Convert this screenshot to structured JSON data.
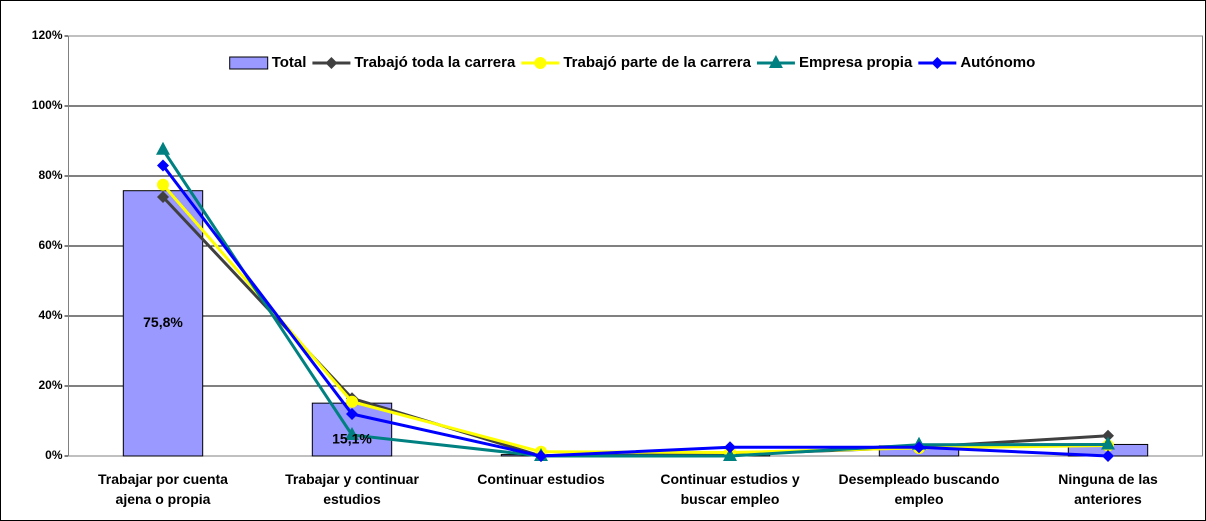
{
  "chart_data": {
    "type": "bar_line",
    "categories": [
      "Trabajar por cuenta ajena o propia",
      "Trabajar y continuar estudios",
      "Continuar estudios",
      "Continuar estudios y buscar empleo",
      "Desempleado buscando empleo",
      "Ninguna de las anteriores"
    ],
    "series": [
      {
        "name": "Total",
        "type": "bar",
        "color": "#9999ff",
        "values": [
          75.8,
          15.1,
          0.4,
          0.4,
          2.9,
          3.3
        ],
        "value_labels": [
          "75,8%",
          "15,1%",
          null,
          null,
          null,
          null
        ]
      },
      {
        "name": "Trabajó toda la carrera",
        "type": "line",
        "marker": "diamond",
        "color": "#404040",
        "values": [
          74,
          16.5,
          0,
          0.5,
          2.5,
          5.8
        ]
      },
      {
        "name": "Trabajó parte de la carrera",
        "type": "line",
        "marker": "circle",
        "color": "#ffff00",
        "values": [
          77.5,
          15.5,
          1.2,
          1.0,
          2.3,
          3.0
        ]
      },
      {
        "name": "Empresa propia",
        "type": "line",
        "marker": "triangle",
        "color": "#008080",
        "values": [
          87.5,
          6,
          0,
          0,
          3.2,
          3.3
        ]
      },
      {
        "name": "Autónomo",
        "type": "line",
        "marker": "diamond",
        "color": "#0000ff",
        "values": [
          83,
          12,
          0,
          2.5,
          2.5,
          0
        ]
      }
    ],
    "ylim": [
      0,
      120
    ],
    "yticks": [
      {
        "value": 0,
        "label": "0%"
      },
      {
        "value": 20,
        "label": "20%"
      },
      {
        "value": 40,
        "label": "40%"
      },
      {
        "value": 60,
        "label": "60%"
      },
      {
        "value": 80,
        "label": "80%"
      },
      {
        "value": 100,
        "label": "100%"
      },
      {
        "value": 120,
        "label": "120%"
      }
    ],
    "grid": true,
    "legend": "top"
  }
}
